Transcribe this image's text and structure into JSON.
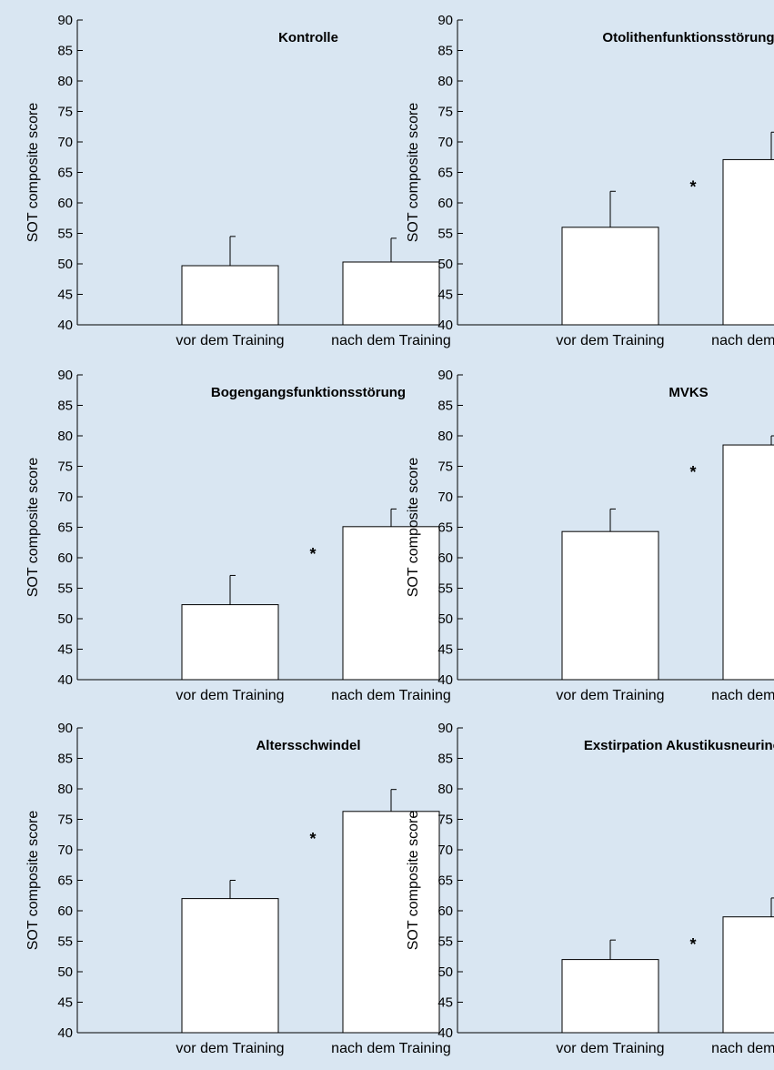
{
  "background": "#d9e6f2",
  "bar_fill": "#ffffff",
  "chart_data": [
    {
      "type": "bar",
      "title": "Kontrolle",
      "categories": [
        "vor dem Training",
        "nach dem Training"
      ],
      "values": [
        49.7,
        50.3
      ],
      "error": [
        4.8,
        3.9
      ],
      "ylabel": "SOT composite score",
      "ylim": [
        40,
        90
      ],
      "yticks": [
        40,
        45,
        50,
        55,
        60,
        65,
        70,
        75,
        80,
        85,
        90
      ],
      "significance": "",
      "grid": false
    },
    {
      "type": "bar",
      "title": "Otolithenfunktionsstörung",
      "categories": [
        "vor dem Training",
        "nach dem Training"
      ],
      "values": [
        56.0,
        67.1
      ],
      "error": [
        5.9,
        4.5
      ],
      "ylabel": "SOT composite score",
      "ylim": [
        40,
        90
      ],
      "yticks": [
        40,
        45,
        50,
        55,
        60,
        65,
        70,
        75,
        80,
        85,
        90
      ],
      "significance": "*",
      "grid": false
    },
    {
      "type": "bar",
      "title": "Bogengangsfunktionsstörung",
      "categories": [
        "vor dem Training",
        "nach dem Training"
      ],
      "values": [
        52.3,
        65.1
      ],
      "error": [
        4.8,
        2.9
      ],
      "ylabel": "SOT composite score",
      "ylim": [
        40,
        90
      ],
      "yticks": [
        40,
        45,
        50,
        55,
        60,
        65,
        70,
        75,
        80,
        85,
        90
      ],
      "significance": "*",
      "grid": false
    },
    {
      "type": "bar",
      "title": "MVKS",
      "categories": [
        "vor dem Training",
        "nach dem Training"
      ],
      "values": [
        64.3,
        78.5
      ],
      "error": [
        3.7,
        1.5
      ],
      "ylabel": "SOT composite score",
      "ylim": [
        40,
        90
      ],
      "yticks": [
        40,
        45,
        50,
        55,
        60,
        65,
        70,
        75,
        80,
        85,
        90
      ],
      "significance": "*",
      "grid": false
    },
    {
      "type": "bar",
      "title": "Altersschwindel",
      "categories": [
        "vor dem Training",
        "nach dem Training"
      ],
      "values": [
        62.0,
        76.3
      ],
      "error": [
        3.0,
        3.6
      ],
      "ylabel": "SOT composite score",
      "ylim": [
        40,
        90
      ],
      "yticks": [
        40,
        45,
        50,
        55,
        60,
        65,
        70,
        75,
        80,
        85,
        90
      ],
      "significance": "*",
      "grid": false
    },
    {
      "type": "bar",
      "title": "Exstirpation Akustikusneurinom",
      "categories": [
        "vor dem Training",
        "nach dem Training"
      ],
      "values": [
        52.0,
        59.0
      ],
      "error": [
        3.2,
        3.1
      ],
      "ylabel": "SOT composite score",
      "ylim": [
        40,
        90
      ],
      "yticks": [
        40,
        45,
        50,
        55,
        60,
        65,
        70,
        75,
        80,
        85,
        90
      ],
      "significance": "*",
      "grid": false
    }
  ]
}
